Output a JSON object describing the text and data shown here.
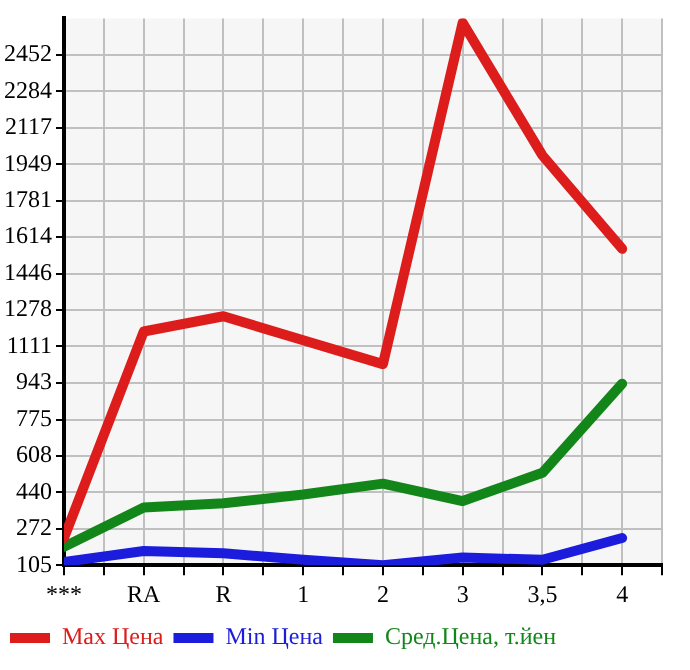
{
  "chart_data": {
    "type": "line",
    "categories": [
      "***",
      "RA",
      "R",
      "1",
      "2",
      "3",
      "3,5",
      "4"
    ],
    "series": [
      {
        "name": "Max Цена",
        "color": "#dd1c1c",
        "values": [
          230,
          1180,
          1250,
          1140,
          1030,
          2600,
          1990,
          1560
        ]
      },
      {
        "name": "Min Цена",
        "color": "#1c1cdd",
        "values": [
          120,
          170,
          160,
          130,
          105,
          140,
          130,
          230
        ]
      },
      {
        "name": "Сред.Цена, т.йен",
        "color": "#13861a",
        "values": [
          190,
          370,
          390,
          430,
          480,
          400,
          530,
          940
        ]
      }
    ],
    "ylim": [
      105,
      2620
    ],
    "yticks": [
      105,
      272,
      440,
      608,
      775,
      943,
      1111,
      1278,
      1446,
      1614,
      1781,
      1949,
      2117,
      2284,
      2452
    ],
    "grid": true,
    "legend": "bottom",
    "marker": "none",
    "line_style": "solid"
  }
}
